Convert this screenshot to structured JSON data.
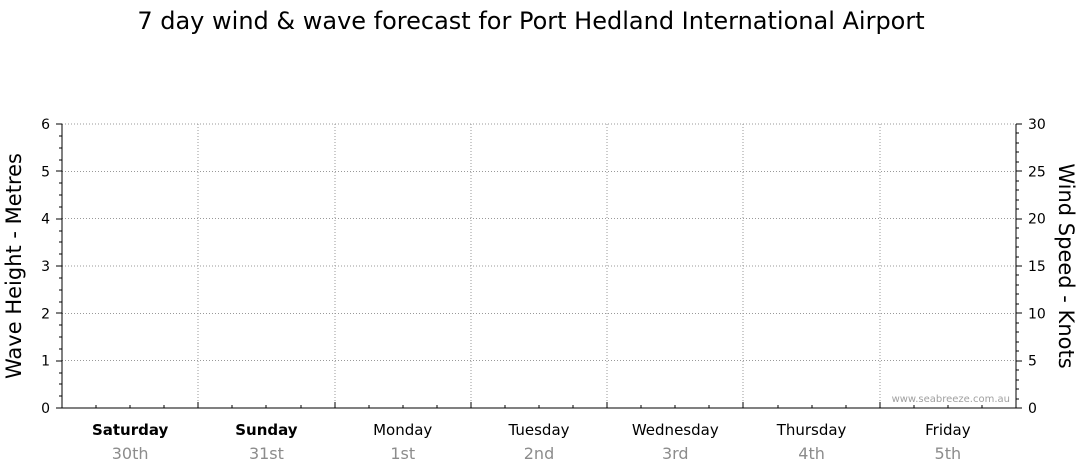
{
  "chart_data": {
    "type": "line",
    "title": "7 day wind & wave forecast for Port Hedland International Airport",
    "ylabel_left": "Wave Height - Metres",
    "ylabel_right": "Wind Speed - Knots",
    "ylim_left": [
      0,
      6
    ],
    "ylim_right": [
      0,
      30
    ],
    "yticks_left": [
      "0",
      "1",
      "2",
      "3",
      "4",
      "5",
      "6"
    ],
    "yticks_right": [
      "0",
      "5",
      "10",
      "15",
      "20",
      "25",
      "30"
    ],
    "grid": true,
    "days": [
      {
        "name": "Saturday",
        "date": "30th",
        "bold": true
      },
      {
        "name": "Sunday",
        "date": "31st",
        "bold": true
      },
      {
        "name": "Monday",
        "date": "1st",
        "bold": false
      },
      {
        "name": "Tuesday",
        "date": "2nd",
        "bold": false
      },
      {
        "name": "Wednesday",
        "date": "3rd",
        "bold": false
      },
      {
        "name": "Thursday",
        "date": "4th",
        "bold": false
      },
      {
        "name": "Friday",
        "date": "5th",
        "bold": false
      }
    ],
    "series": [],
    "watermark": "www.seabreeze.com.au"
  }
}
